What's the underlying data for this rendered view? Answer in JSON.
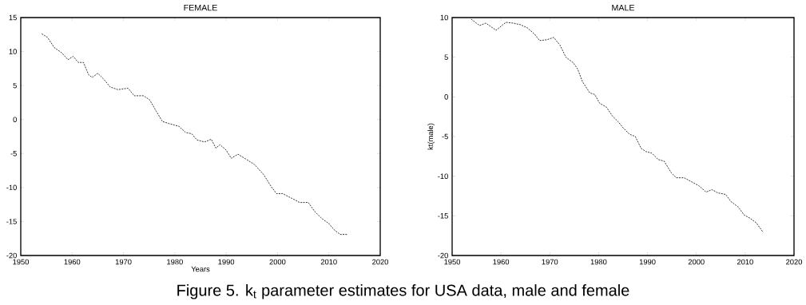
{
  "chart_data": [
    {
      "type": "line",
      "title": "FEMALE",
      "xlabel": "Years",
      "line_style": "dashed",
      "xlim": [
        1950,
        2020
      ],
      "ylim": [
        -20,
        15
      ],
      "xticks": [
        1950,
        1960,
        1970,
        1980,
        1990,
        2000,
        2010,
        2020
      ],
      "yticks": [
        15,
        10,
        5,
        0,
        -5,
        -10,
        -15,
        -20
      ],
      "annotations": [
        "Figure 5. k$_{t}$ parameter estimates for USA data, male and female"
      ],
      "series": [
        {
          "color": "#000000",
          "x": [
            1954.1,
            1955.2,
            1956.5,
            1958,
            1959.2,
            1960.2,
            1961.2,
            1962.2,
            1963.2,
            1963.9,
            1965,
            1966.2,
            1967.4,
            1968.9,
            1970.9,
            1972.1,
            1973.9,
            1975.1,
            1976.4,
            1977.6,
            1978.9,
            1980.8,
            1982.1,
            1983.3,
            1984.3,
            1985.8,
            1987.1,
            1988,
            1988.8,
            1990,
            1991,
            1992.3,
            1993.8,
            1995.5,
            1997.3,
            1998.8,
            1999.8,
            2001,
            2002.8,
            2004.3,
            2006,
            2007.2,
            2008.7,
            2010,
            2011,
            2012.2,
            2013.6
          ],
          "values": [
            12.6,
            12.1,
            10.6,
            9.8,
            8.8,
            9.3,
            8.4,
            8.4,
            6.6,
            6.2,
            6.8,
            5.9,
            4.8,
            4.4,
            4.6,
            3.5,
            3.5,
            2.9,
            1.2,
            -0.3,
            -0.6,
            -1.0,
            -1.9,
            -2.1,
            -3.0,
            -3.3,
            -2.9,
            -4.2,
            -3.7,
            -4.5,
            -5.7,
            -5.1,
            -5.8,
            -6.6,
            -8.1,
            -9.9,
            -10.9,
            -10.9,
            -11.6,
            -12.2,
            -12.2,
            -13.5,
            -14.6,
            -15.3,
            -16.2,
            -16.9,
            -16.9
          ]
        }
      ]
    },
    {
      "type": "line",
      "title": "MALE",
      "ylabel": "kt(male)",
      "line_style": "dashed",
      "xlim": [
        1950,
        2020
      ],
      "ylim": [
        -20,
        10
      ],
      "xticks": [
        1950,
        1960,
        1970,
        1980,
        1990,
        2000,
        2010,
        2020
      ],
      "yticks": [
        10,
        5,
        0,
        -5,
        -10,
        -15,
        -20
      ],
      "series": [
        {
          "color": "#000000",
          "x": [
            1953.9,
            1955.6,
            1956.9,
            1959,
            1961,
            1962.5,
            1964,
            1965.4,
            1966.9,
            1967.9,
            1969.4,
            1970.8,
            1972.1,
            1973.3,
            1974.8,
            1975.7,
            1976.7,
            1978.2,
            1979.2,
            1980.2,
            1981.6,
            1982.8,
            1984.1,
            1985,
            1986.3,
            1987.5,
            1988.7,
            1989.7,
            1990.9,
            1992.2,
            1993.4,
            1994.9,
            1995.9,
            1997.5,
            1999,
            2000.5,
            2002,
            2003.2,
            2004.4,
            2006,
            2007.1,
            2008.6,
            2009.8,
            2011,
            2012.3,
            2013.7
          ],
          "values": [
            9.8,
            9.0,
            9.3,
            8.4,
            9.4,
            9.3,
            9.1,
            8.7,
            7.9,
            7.1,
            7.2,
            7.5,
            6.5,
            5.0,
            4.3,
            3.5,
            1.9,
            0.5,
            0.3,
            -0.8,
            -1.3,
            -2.4,
            -3.2,
            -3.9,
            -4.7,
            -5.0,
            -6.5,
            -6.9,
            -7.1,
            -7.9,
            -8.1,
            -9.6,
            -10.2,
            -10.2,
            -10.7,
            -11.2,
            -12.0,
            -11.7,
            -12.1,
            -12.3,
            -13.2,
            -13.9,
            -14.9,
            -15.3,
            -15.9,
            -17.1
          ]
        }
      ]
    }
  ]
}
